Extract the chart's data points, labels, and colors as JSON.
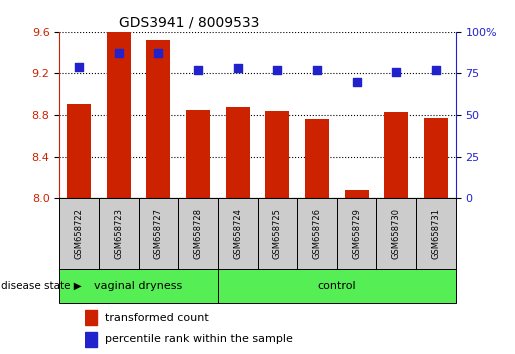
{
  "title": "GDS3941 / 8009533",
  "samples": [
    "GSM658722",
    "GSM658723",
    "GSM658727",
    "GSM658728",
    "GSM658724",
    "GSM658725",
    "GSM658726",
    "GSM658729",
    "GSM658730",
    "GSM658731"
  ],
  "transformed_count": [
    8.91,
    9.6,
    9.52,
    8.85,
    8.88,
    8.84,
    8.76,
    8.08,
    8.83,
    8.77
  ],
  "percentile_rank": [
    79,
    87,
    87,
    77,
    78,
    77,
    77,
    70,
    76,
    77
  ],
  "ylim_left": [
    8.0,
    9.6
  ],
  "ylim_right": [
    0,
    100
  ],
  "yticks_left": [
    8.0,
    8.4,
    8.8,
    9.2,
    9.6
  ],
  "yticks_right": [
    0,
    25,
    50,
    75,
    100
  ],
  "bar_color": "#cc2200",
  "dot_color": "#2222cc",
  "group1_label": "vaginal dryness",
  "group2_label": "control",
  "group1_count": 4,
  "group2_count": 6,
  "group_bg_color": "#55ee55",
  "tick_bg_color": "#cccccc",
  "legend_bar_label": "transformed count",
  "legend_dot_label": "percentile rank within the sample",
  "disease_state_label": "disease state",
  "axis_left_color": "#cc2200",
  "axis_right_color": "#2222cc",
  "bar_width": 0.6,
  "dot_size": 30
}
